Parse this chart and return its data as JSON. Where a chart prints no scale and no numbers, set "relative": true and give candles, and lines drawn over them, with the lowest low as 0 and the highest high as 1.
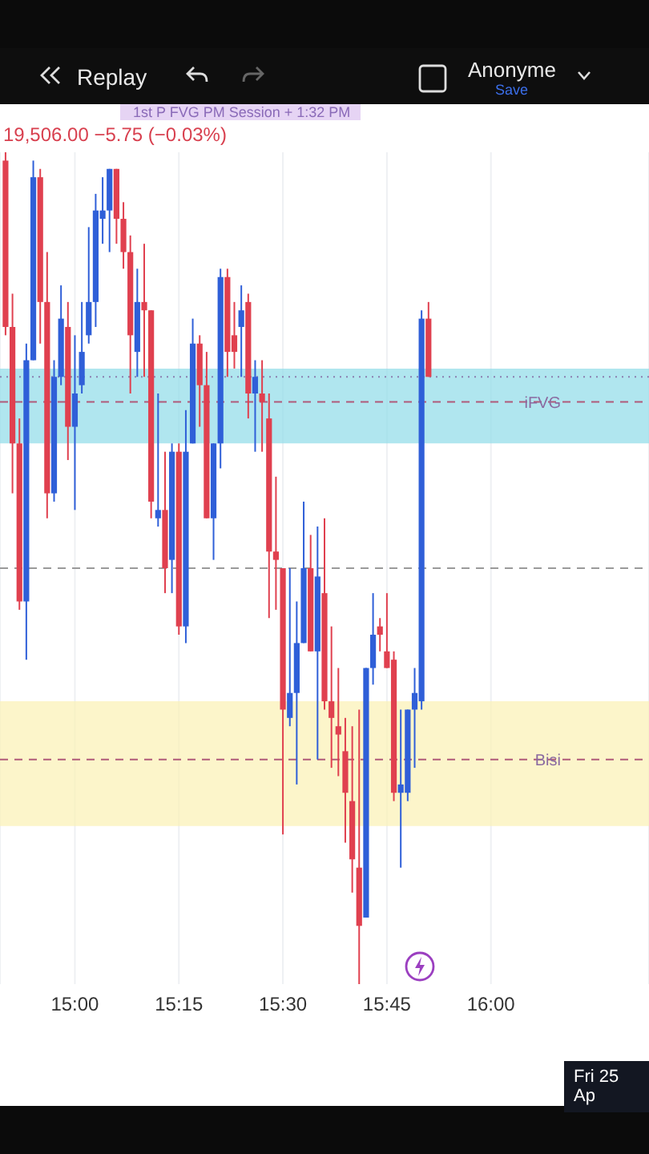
{
  "chart_data": {
    "type": "candlestick",
    "relative": true,
    "x": [
      14.8333,
      14.85,
      14.8667,
      14.8833,
      14.9,
      14.9167,
      14.9333,
      14.95,
      14.9667,
      14.9833,
      15,
      15.0167,
      15.0333,
      15.05,
      15.0667,
      15.0833,
      15.1,
      15.1167,
      15.1333,
      15.15,
      15.1667,
      15.1833,
      15.2,
      15.2167,
      15.2333,
      15.25,
      15.2667,
      15.2833,
      15.3,
      15.3167,
      15.3333,
      15.35,
      15.3667,
      15.3833,
      15.4,
      15.4167,
      15.4333,
      15.45,
      15.4667,
      15.4833,
      15.5,
      15.5167,
      15.5333,
      15.55,
      15.5667,
      15.5833,
      15.6,
      15.6167,
      15.6333,
      15.65,
      15.6667,
      15.6833,
      15.7,
      15.7167,
      15.7333,
      15.75,
      15.7667,
      15.7833,
      15.8,
      15.8167,
      15.8333,
      15.85
    ],
    "ohlc": [
      [
        0.99,
        1,
        0.78,
        0.79
      ],
      [
        0.79,
        0.83,
        0.59,
        0.65
      ],
      [
        0.65,
        0.68,
        0.45,
        0.46
      ],
      [
        0.46,
        0.77,
        0.39,
        0.75
      ],
      [
        0.75,
        0.99,
        0.75,
        0.97
      ],
      [
        0.97,
        0.98,
        0.77,
        0.82
      ],
      [
        0.82,
        0.88,
        0.56,
        0.59
      ],
      [
        0.59,
        0.75,
        0.58,
        0.73
      ],
      [
        0.73,
        0.84,
        0.72,
        0.8
      ],
      [
        0.79,
        0.82,
        0.63,
        0.67
      ],
      [
        0.67,
        0.78,
        0.57,
        0.71
      ],
      [
        0.72,
        0.82,
        0.71,
        0.76
      ],
      [
        0.78,
        0.91,
        0.77,
        0.82
      ],
      [
        0.82,
        0.95,
        0.79,
        0.93
      ],
      [
        0.92,
        0.97,
        0.89,
        0.93
      ],
      [
        0.93,
        0.98,
        0.88,
        0.98
      ],
      [
        0.98,
        0.98,
        0.89,
        0.92
      ],
      [
        0.92,
        0.94,
        0.86,
        0.88
      ],
      [
        0.88,
        0.9,
        0.71,
        0.78
      ],
      [
        0.76,
        0.86,
        0.73,
        0.82
      ],
      [
        0.82,
        0.89,
        0.73,
        0.81
      ],
      [
        0.81,
        0.81,
        0.56,
        0.58
      ],
      [
        0.56,
        0.71,
        0.55,
        0.57
      ],
      [
        0.57,
        0.64,
        0.47,
        0.5
      ],
      [
        0.51,
        0.65,
        0.47,
        0.64
      ],
      [
        0.64,
        0.65,
        0.42,
        0.43
      ],
      [
        0.43,
        0.69,
        0.41,
        0.64
      ],
      [
        0.65,
        0.8,
        0.65,
        0.77
      ],
      [
        0.77,
        0.78,
        0.67,
        0.72
      ],
      [
        0.72,
        0.76,
        0.56,
        0.56
      ],
      [
        0.56,
        0.65,
        0.51,
        0.65
      ],
      [
        0.65,
        0.86,
        0.62,
        0.85
      ],
      [
        0.85,
        0.86,
        0.73,
        0.76
      ],
      [
        0.78,
        0.82,
        0.74,
        0.76
      ],
      [
        0.79,
        0.84,
        0.73,
        0.81
      ],
      [
        0.82,
        0.83,
        0.68,
        0.71
      ],
      [
        0.71,
        0.75,
        0.64,
        0.73
      ],
      [
        0.71,
        0.75,
        0.64,
        0.7
      ],
      [
        0.68,
        0.71,
        0.44,
        0.52
      ],
      [
        0.52,
        0.61,
        0.45,
        0.51
      ],
      [
        0.5,
        0.5,
        0.18,
        0.33
      ],
      [
        0.32,
        0.5,
        0.31,
        0.35
      ],
      [
        0.35,
        0.46,
        0.24,
        0.41
      ],
      [
        0.41,
        0.58,
        0.41,
        0.5
      ],
      [
        0.5,
        0.54,
        0.4,
        0.4
      ],
      [
        0.4,
        0.55,
        0.27,
        0.49
      ],
      [
        0.47,
        0.56,
        0.33,
        0.34
      ],
      [
        0.34,
        0.43,
        0.26,
        0.32
      ],
      [
        0.31,
        0.38,
        0.25,
        0.3
      ],
      [
        0.28,
        0.32,
        0.17,
        0.23
      ],
      [
        0.22,
        0.31,
        0.11,
        0.15
      ],
      [
        0.14,
        0.33,
        0,
        0.07
      ],
      [
        0.08,
        0.38,
        0.08,
        0.38
      ],
      [
        0.38,
        0.47,
        0.36,
        0.42
      ],
      [
        0.43,
        0.44,
        0.4,
        0.42
      ],
      [
        0.4,
        0.47,
        0.38,
        0.38
      ],
      [
        0.39,
        0.4,
        0.22,
        0.23
      ],
      [
        0.23,
        0.33,
        0.14,
        0.24
      ],
      [
        0.23,
        0.33,
        0.22,
        0.33
      ],
      [
        0.33,
        0.38,
        0.26,
        0.35
      ],
      [
        0.34,
        0.81,
        0.33,
        0.8
      ],
      [
        0.8,
        0.82,
        0.73,
        0.73
      ]
    ],
    "colors": [
      "#e0404f",
      "#e0404f",
      "#e0404f",
      "#2f5fd8",
      "#2f5fd8",
      "#e0404f",
      "#e0404f",
      "#2f5fd8",
      "#2f5fd8",
      "#e0404f",
      "#2f5fd8",
      "#2f5fd8",
      "#2f5fd8",
      "#2f5fd8",
      "#2f5fd8",
      "#2f5fd8",
      "#e0404f",
      "#e0404f",
      "#e0404f",
      "#2f5fd8",
      "#e0404f",
      "#e0404f",
      "#2f5fd8",
      "#e0404f",
      "#2f5fd8",
      "#e0404f",
      "#2f5fd8",
      "#2f5fd8",
      "#e0404f",
      "#e0404f",
      "#2f5fd8",
      "#2f5fd8",
      "#e0404f",
      "#e0404f",
      "#2f5fd8",
      "#e0404f",
      "#2f5fd8",
      "#e0404f",
      "#e0404f",
      "#e0404f",
      "#e0404f",
      "#2f5fd8",
      "#2f5fd8",
      "#2f5fd8",
      "#e0404f",
      "#2f5fd8",
      "#e0404f",
      "#e0404f",
      "#e0404f",
      "#e0404f",
      "#e0404f",
      "#e0404f",
      "#2f5fd8",
      "#2f5fd8",
      "#e0404f",
      "#e0404f",
      "#e0404f",
      "#2f5fd8",
      "#2f5fd8",
      "#2f5fd8",
      "#2f5fd8",
      "#e0404f"
    ],
    "xlim": [
      14.82,
      16.38
    ],
    "xticks": [
      {
        "value": 15,
        "label": "15:00"
      },
      {
        "value": 15.25,
        "label": "15:15"
      },
      {
        "value": 15.5,
        "label": "15:30"
      },
      {
        "value": 15.75,
        "label": "15:45"
      },
      {
        "value": 16,
        "label": "16:00"
      }
    ],
    "grid": "x",
    "bands": [
      {
        "axis": "y",
        "from": 0.65,
        "to": 0.74,
        "color": "#8fdbe8"
      },
      {
        "axis": "y",
        "from": 0.19,
        "to": 0.34,
        "color": "#fbf1b3"
      }
    ],
    "ref_lines": [
      {
        "axis": "y",
        "value": 0.73,
        "color": "#8a7fb0",
        "line_style": "dotted"
      },
      {
        "axis": "y",
        "value": 0.5,
        "color": "#9a9a9a",
        "line_style": "dashed"
      },
      {
        "axis": "y",
        "value": 0.7,
        "label": "iFVG",
        "color": "#b05a7a",
        "line_style": "dashed"
      },
      {
        "axis": "y",
        "value": 0.27,
        "label": "Bisi",
        "color": "#b05a7a",
        "line_style": "dashed"
      }
    ],
    "annotations": [
      "Replay",
      "Anonyme",
      "Save",
      "19,506.00",
      "−5.75 (−0.03%)",
      "1st P FVG PM Session + 1:32 PM",
      "Fri 25 Ap"
    ]
  }
}
